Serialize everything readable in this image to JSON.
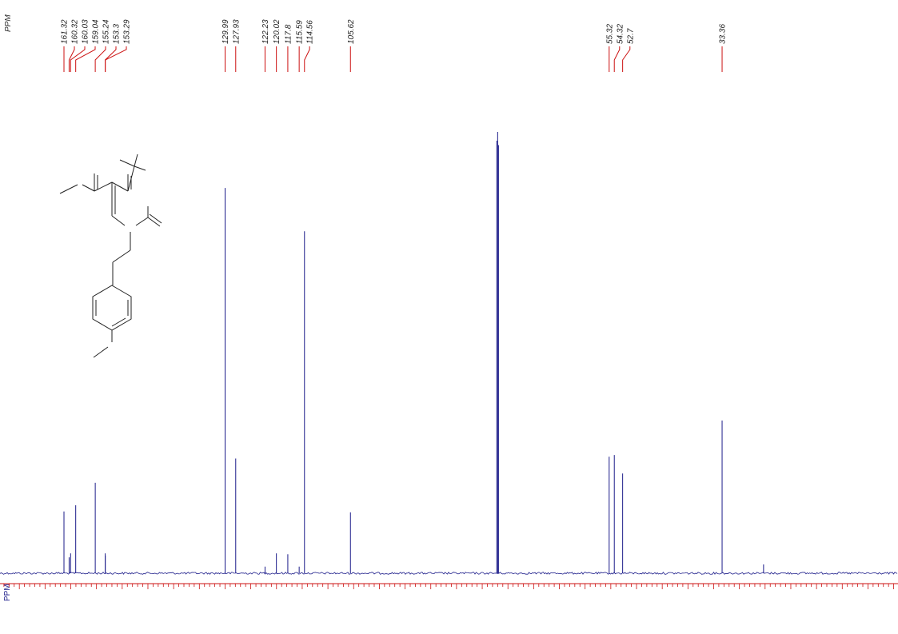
{
  "chart_data": {
    "type": "spectrum",
    "axis_label": "PPM",
    "xlim": [
      173.76,
      -0.84
    ],
    "ylim": [
      0,
      100
    ],
    "xtick_step": 1,
    "xtick_major_every": 5,
    "peak_color": "#1c1c8a",
    "label_color": "#cc1111",
    "peaks": {
      "x": [
        161.32,
        160.32,
        160.03,
        159.04,
        155.24,
        153.3,
        153.29,
        129.99,
        127.93,
        122.23,
        120.02,
        117.8,
        115.59,
        114.56,
        105.62,
        55.32,
        54.32,
        52.7,
        33.36
      ],
      "values": [
        14,
        3.6,
        4.5,
        15.4,
        20.5,
        4.5,
        4,
        87.3,
        26,
        1.5,
        4.5,
        4.3,
        1.5,
        77.5,
        13.8,
        26.4,
        26.8,
        22.6,
        34.6
      ]
    },
    "unlabeled_peaks": {
      "x": [
        77.16,
        77.0,
        76.84,
        25.3
      ],
      "values": [
        98,
        100,
        97,
        2
      ]
    }
  }
}
